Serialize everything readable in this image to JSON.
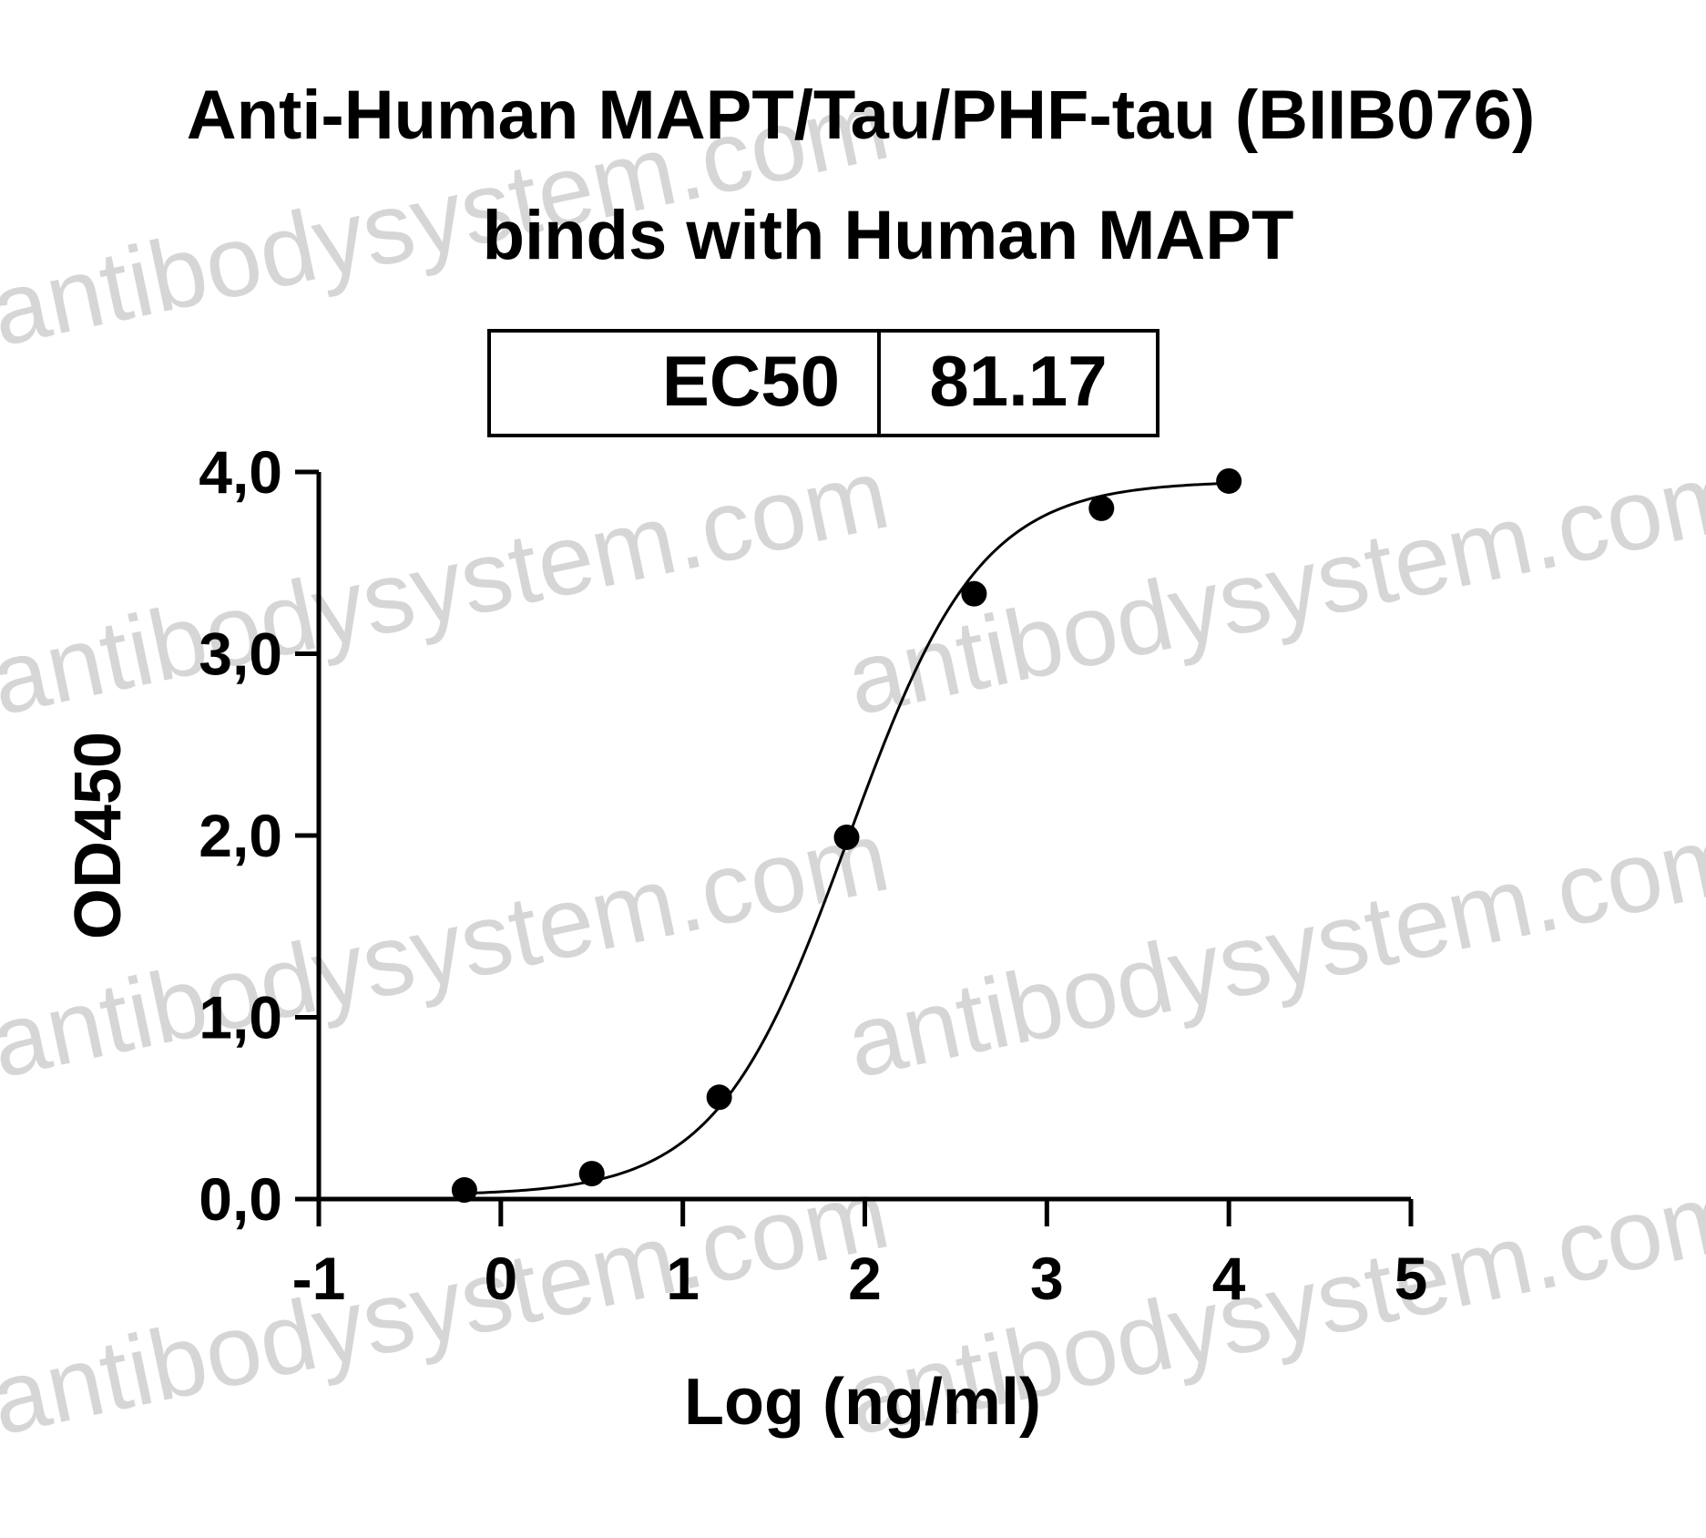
{
  "chart_data": {
    "type": "scatter",
    "title_line1": "Anti-Human MAPT/Tau/PHF-tau (BIIB076)",
    "title_line2": "binds with Human MAPT",
    "xlabel": "Log (ng/ml)",
    "ylabel": "OD450",
    "xlim": [
      -1,
      5
    ],
    "ylim": [
      0,
      4
    ],
    "x_ticks": [
      -1,
      0,
      1,
      2,
      3,
      4,
      5
    ],
    "x_tick_labels": [
      "-1",
      "0",
      "1",
      "2",
      "3",
      "4",
      "5"
    ],
    "y_ticks": [
      0,
      1,
      2,
      3,
      4
    ],
    "y_tick_labels": [
      "0,0",
      "1,0",
      "2,0",
      "3,0",
      "4,0"
    ],
    "grid": false,
    "ec50_table": {
      "label": "EC50",
      "value": "81.17"
    },
    "points": [
      {
        "x": -0.2,
        "y": 0.05
      },
      {
        "x": 0.5,
        "y": 0.14
      },
      {
        "x": 1.2,
        "y": 0.56
      },
      {
        "x": 1.9,
        "y": 1.99
      },
      {
        "x": 2.6,
        "y": 3.33
      },
      {
        "x": 3.3,
        "y": 3.8
      },
      {
        "x": 4.0,
        "y": 3.95
      }
    ],
    "fit_curve": {
      "model": "4PL",
      "bottom": 0.02,
      "top": 3.95,
      "log_ec50": 1.909,
      "hill": 1.2,
      "x_range": [
        -0.2,
        4.0
      ],
      "color": "#000000"
    },
    "marker_color": "#000000"
  },
  "watermark": {
    "text": "antibodysystem.com"
  }
}
